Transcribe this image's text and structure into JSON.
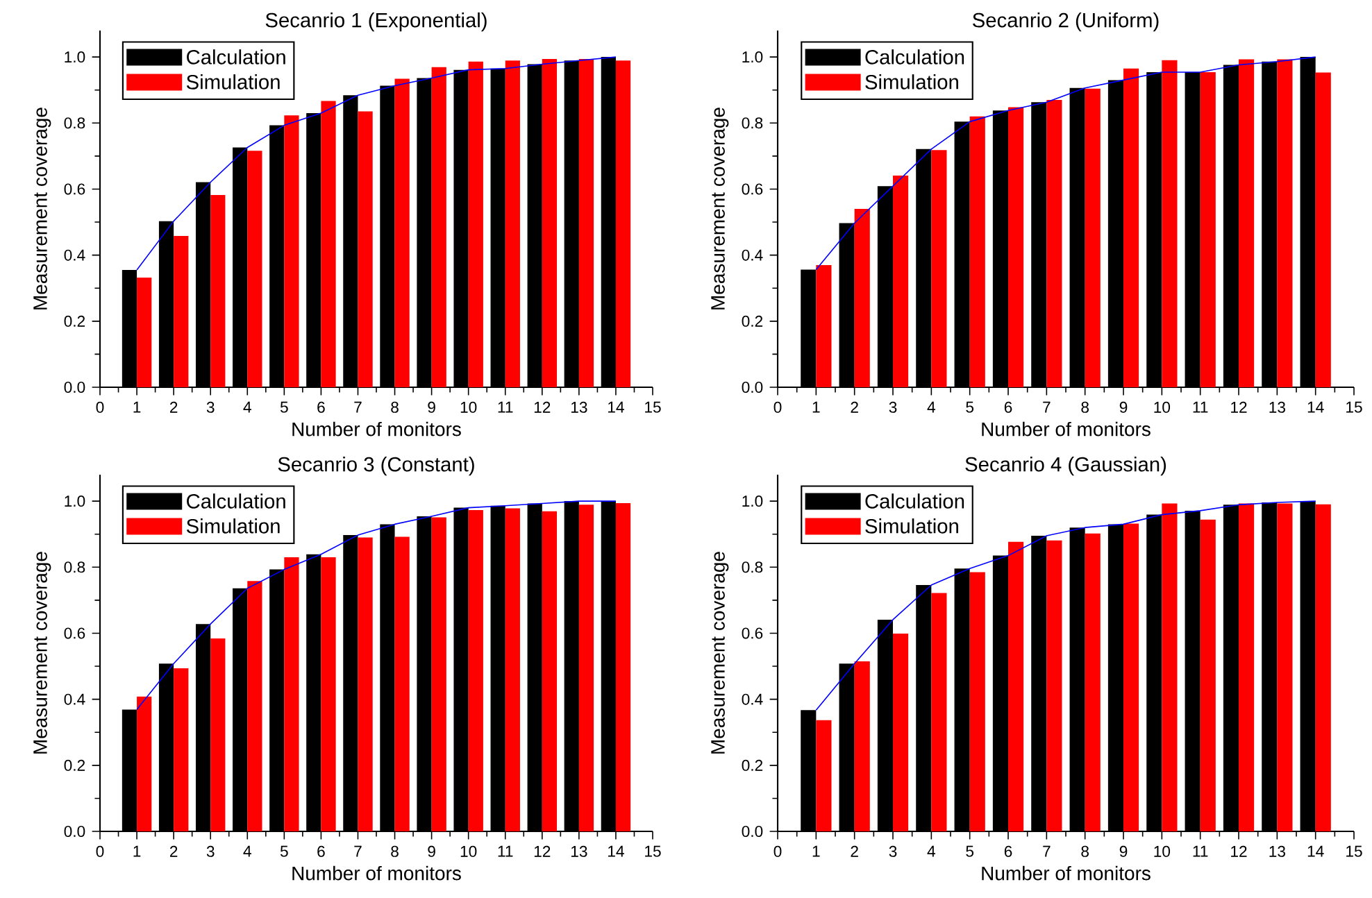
{
  "chart_data": [
    {
      "type": "bar",
      "title": "Secanrio 1 (Exponential)",
      "xlabel": "Number of monitors",
      "ylabel": "Measurement coverage",
      "x": [
        1,
        2,
        3,
        4,
        5,
        6,
        7,
        8,
        9,
        10,
        11,
        12,
        13,
        14
      ],
      "xlim": [
        0,
        15
      ],
      "xticks": [
        0,
        1,
        2,
        3,
        4,
        5,
        6,
        7,
        8,
        9,
        10,
        11,
        12,
        13,
        14,
        15
      ],
      "ylim": [
        0,
        1.08
      ],
      "yticks": [
        {
          "value": 0,
          "label": "0.0"
        },
        {
          "value": 0.2,
          "label": "0.2"
        },
        {
          "value": 0.4,
          "label": "0.4"
        },
        {
          "value": 0.6,
          "label": "0.6"
        },
        {
          "value": 0.8,
          "label": "0.8"
        },
        {
          "value": 1.0,
          "label": "1.0"
        }
      ],
      "legend": "top left",
      "series": [
        {
          "name": "Calculation",
          "color": "#000000",
          "values": [
            0.355,
            0.503,
            0.621,
            0.726,
            0.793,
            0.83,
            0.884,
            0.913,
            0.936,
            0.961,
            0.965,
            0.978,
            0.989,
            1.0
          ]
        },
        {
          "name": "Simulation",
          "color": "#ff0000",
          "values": [
            0.332,
            0.458,
            0.582,
            0.716,
            0.823,
            0.867,
            0.835,
            0.934,
            0.969,
            0.986,
            0.989,
            0.994,
            0.994,
            0.989
          ]
        },
        {
          "type": "line",
          "color": "#0000ff",
          "values": [
            0.355,
            0.503,
            0.621,
            0.726,
            0.793,
            0.83,
            0.884,
            0.913,
            0.936,
            0.961,
            0.965,
            0.978,
            0.989,
            1.0
          ]
        }
      ]
    },
    {
      "type": "bar",
      "title": "Secanrio 2 (Uniform)",
      "xlabel": "Number of monitors",
      "ylabel": "Measurement coverage",
      "x": [
        1,
        2,
        3,
        4,
        5,
        6,
        7,
        8,
        9,
        10,
        11,
        12,
        13,
        14
      ],
      "xlim": [
        0,
        15
      ],
      "xticks": [
        0,
        1,
        2,
        3,
        4,
        5,
        6,
        7,
        8,
        9,
        10,
        11,
        12,
        13,
        14,
        15
      ],
      "ylim": [
        0,
        1.08
      ],
      "yticks": [
        {
          "value": 0,
          "label": "0.0"
        },
        {
          "value": 0.2,
          "label": "0.2"
        },
        {
          "value": 0.4,
          "label": "0.4"
        },
        {
          "value": 0.6,
          "label": "0.6"
        },
        {
          "value": 0.8,
          "label": "0.8"
        },
        {
          "value": 1.0,
          "label": "1.0"
        }
      ],
      "legend": "top left",
      "series": [
        {
          "name": "Calculation",
          "color": "#000000",
          "values": [
            0.356,
            0.497,
            0.609,
            0.721,
            0.804,
            0.838,
            0.863,
            0.906,
            0.93,
            0.954,
            0.954,
            0.976,
            0.986,
            1.0
          ]
        },
        {
          "name": "Simulation",
          "color": "#ff0000",
          "values": [
            0.37,
            0.54,
            0.641,
            0.718,
            0.82,
            0.848,
            0.87,
            0.904,
            0.965,
            0.99,
            0.954,
            0.993,
            0.993,
            0.953
          ]
        },
        {
          "type": "line",
          "color": "#0000ff",
          "values": [
            0.356,
            0.497,
            0.609,
            0.721,
            0.804,
            0.838,
            0.863,
            0.906,
            0.93,
            0.954,
            0.954,
            0.976,
            0.986,
            1.0
          ]
        }
      ]
    },
    {
      "type": "bar",
      "title": "Secanrio 3 (Constant)",
      "xlabel": "Number of monitors",
      "ylabel": "Measurement coverage",
      "x": [
        1,
        2,
        3,
        4,
        5,
        6,
        7,
        8,
        9,
        10,
        11,
        12,
        13,
        14
      ],
      "xlim": [
        0,
        15
      ],
      "xticks": [
        0,
        1,
        2,
        3,
        4,
        5,
        6,
        7,
        8,
        9,
        10,
        11,
        12,
        13,
        14,
        15
      ],
      "ylim": [
        0,
        1.08
      ],
      "yticks": [
        {
          "value": 0,
          "label": "0.0"
        },
        {
          "value": 0.2,
          "label": "0.2"
        },
        {
          "value": 0.4,
          "label": "0.4"
        },
        {
          "value": 0.6,
          "label": "0.6"
        },
        {
          "value": 0.8,
          "label": "0.8"
        },
        {
          "value": 1.0,
          "label": "1.0"
        }
      ],
      "legend": "top left",
      "series": [
        {
          "name": "Calculation",
          "color": "#000000",
          "values": [
            0.369,
            0.508,
            0.628,
            0.736,
            0.793,
            0.839,
            0.897,
            0.93,
            0.954,
            0.98,
            0.986,
            0.993,
            1.0,
            1.0
          ]
        },
        {
          "name": "Simulation",
          "color": "#ff0000",
          "values": [
            0.408,
            0.494,
            0.584,
            0.758,
            0.83,
            0.83,
            0.89,
            0.892,
            0.951,
            0.973,
            0.978,
            0.969,
            0.989,
            0.994
          ]
        },
        {
          "type": "line",
          "color": "#0000ff",
          "values": [
            0.369,
            0.508,
            0.628,
            0.736,
            0.793,
            0.839,
            0.897,
            0.93,
            0.954,
            0.98,
            0.986,
            0.993,
            1.0,
            1.0
          ]
        }
      ]
    },
    {
      "type": "bar",
      "title": "Secanrio 4 (Gaussian)",
      "xlabel": "Number of monitors",
      "ylabel": "Measurement coverage",
      "x": [
        1,
        2,
        3,
        4,
        5,
        6,
        7,
        8,
        9,
        10,
        11,
        12,
        13,
        14
      ],
      "xlim": [
        0,
        15
      ],
      "xticks": [
        0,
        1,
        2,
        3,
        4,
        5,
        6,
        7,
        8,
        9,
        10,
        11,
        12,
        13,
        14,
        15
      ],
      "ylim": [
        0,
        1.08
      ],
      "yticks": [
        {
          "value": 0,
          "label": "0.0"
        },
        {
          "value": 0.2,
          "label": "0.2"
        },
        {
          "value": 0.4,
          "label": "0.4"
        },
        {
          "value": 0.6,
          "label": "0.6"
        },
        {
          "value": 0.8,
          "label": "0.8"
        },
        {
          "value": 1.0,
          "label": "1.0"
        }
      ],
      "legend": "top left",
      "series": [
        {
          "name": "Calculation",
          "color": "#000000",
          "values": [
            0.367,
            0.508,
            0.641,
            0.746,
            0.796,
            0.835,
            0.895,
            0.92,
            0.93,
            0.959,
            0.971,
            0.989,
            0.996,
            1.0
          ]
        },
        {
          "name": "Simulation",
          "color": "#ff0000",
          "values": [
            0.337,
            0.515,
            0.599,
            0.722,
            0.785,
            0.877,
            0.881,
            0.902,
            0.932,
            0.993,
            0.944,
            0.993,
            0.993,
            0.99
          ]
        },
        {
          "type": "line",
          "color": "#0000ff",
          "values": [
            0.367,
            0.508,
            0.641,
            0.746,
            0.796,
            0.835,
            0.895,
            0.92,
            0.93,
            0.959,
            0.971,
            0.989,
            0.996,
            1.0
          ]
        }
      ]
    }
  ]
}
